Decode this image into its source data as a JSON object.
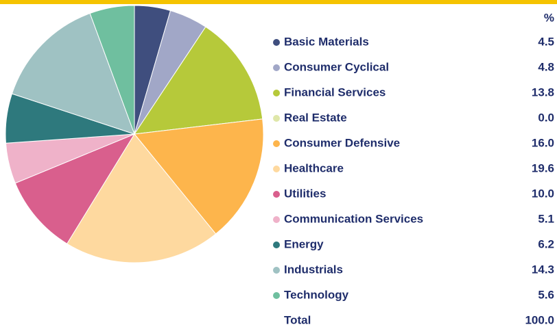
{
  "chart_data": {
    "type": "pie",
    "unit_header": "%",
    "categories": [
      "Basic Materials",
      "Consumer Cyclical",
      "Financial Services",
      "Real Estate",
      "Consumer Defensive",
      "Healthcare",
      "Utilities",
      "Communication Services",
      "Energy",
      "Industrials",
      "Technology"
    ],
    "values": [
      4.5,
      4.8,
      13.8,
      0,
      16,
      19.6,
      10,
      5.1,
      6.2,
      14.3,
      5.6
    ],
    "value_labels": [
      "4.5",
      "4.8",
      "13.8",
      "0.0",
      "16.0",
      "19.6",
      "10.0",
      "5.1",
      "6.2",
      "14.3",
      "5.6"
    ],
    "colors": [
      "#3f4e7e",
      "#a1a7c7",
      "#b6c93a",
      "#dfe7a9",
      "#fdb54c",
      "#fed99f",
      "#d95f8d",
      "#efb2c9",
      "#2e797d",
      "#9fc2c3",
      "#6fbf9f"
    ],
    "total": {
      "label": "Total",
      "value": 100,
      "value_label": "100.0"
    }
  }
}
